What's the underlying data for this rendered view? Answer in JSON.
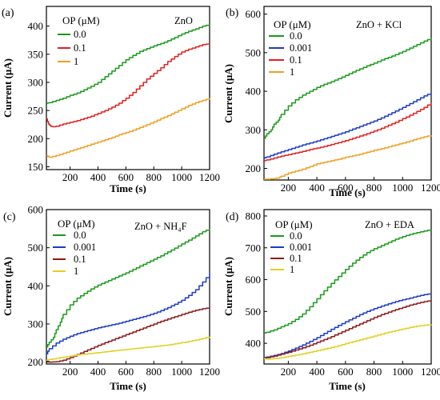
{
  "chart_data": [
    {
      "panel": "(a)",
      "type": "line",
      "annotation": "ZnO",
      "xlabel": "Time (s)",
      "ylabel": "Current (μA)",
      "xlim": [
        30,
        1200
      ],
      "ylim": [
        145,
        435
      ],
      "xticks": [
        200,
        400,
        600,
        800,
        1000,
        1200
      ],
      "yticks": [
        150,
        200,
        250,
        300,
        350,
        400
      ],
      "grid": false,
      "legend": {
        "title": "OP (μM)",
        "placement": "top-left"
      },
      "series": [
        {
          "name": "0.0",
          "color": "#1a9a1a",
          "x": [
            30,
            50,
            100,
            150,
            200,
            250,
            300,
            350,
            400,
            450,
            500,
            550,
            600,
            650,
            700,
            750,
            800,
            850,
            900,
            950,
            1000,
            1050,
            1100,
            1150,
            1200
          ],
          "y": [
            263,
            264,
            268,
            272,
            277,
            281,
            287,
            293,
            300,
            310,
            320,
            330,
            340,
            348,
            355,
            360,
            365,
            369,
            374,
            380,
            386,
            391,
            395,
            400,
            403
          ]
        },
        {
          "name": "0.1",
          "color": "#e02020",
          "x": [
            30,
            45,
            60,
            80,
            100,
            150,
            200,
            250,
            300,
            350,
            400,
            450,
            500,
            550,
            600,
            650,
            700,
            750,
            800,
            850,
            900,
            950,
            1000,
            1050,
            1100,
            1150,
            1200
          ],
          "y": [
            235,
            226,
            222,
            221,
            222,
            226,
            229,
            232,
            236,
            240,
            245,
            250,
            256,
            263,
            272,
            282,
            294,
            306,
            316,
            326,
            337,
            346,
            354,
            359,
            363,
            367,
            369
          ]
        },
        {
          "name": "1",
          "color": "#f0a020",
          "x": [
            30,
            50,
            100,
            150,
            200,
            250,
            300,
            350,
            400,
            450,
            500,
            550,
            600,
            650,
            700,
            750,
            800,
            850,
            900,
            950,
            1000,
            1050,
            1100,
            1150,
            1200
          ],
          "y": [
            170,
            167,
            170,
            174,
            178,
            182,
            186,
            190,
            194,
            198,
            202,
            207,
            211,
            215,
            220,
            225,
            230,
            236,
            241,
            247,
            253,
            259,
            264,
            268,
            272
          ]
        }
      ]
    },
    {
      "panel": "(b)",
      "type": "line",
      "annotation": "ZnO + KCl",
      "xlabel": "Time (s)",
      "ylabel": "Current (μA)",
      "xlim": [
        30,
        1200
      ],
      "ylim": [
        170,
        620
      ],
      "xticks": [
        200,
        400,
        600,
        800,
        1000,
        1200
      ],
      "yticks": [
        200,
        300,
        400,
        500,
        600
      ],
      "grid": false,
      "legend": {
        "title": "OP (μM)",
        "placement": "top-left"
      },
      "series": [
        {
          "name": "0.0",
          "color": "#1a9a1a",
          "x": [
            30,
            50,
            80,
            100,
            130,
            150,
            200,
            250,
            300,
            350,
            400,
            450,
            500,
            550,
            600,
            650,
            700,
            750,
            800,
            850,
            900,
            950,
            1000,
            1050,
            1100,
            1150,
            1200
          ],
          "y": [
            278,
            290,
            300,
            315,
            325,
            340,
            362,
            378,
            390,
            400,
            410,
            418,
            425,
            433,
            441,
            450,
            458,
            466,
            473,
            481,
            488,
            495,
            503,
            512,
            521,
            530,
            538
          ]
        },
        {
          "name": "0.001",
          "color": "#1c3cc8",
          "x": [
            30,
            50,
            100,
            150,
            200,
            250,
            300,
            350,
            400,
            450,
            500,
            550,
            600,
            650,
            700,
            750,
            800,
            850,
            900,
            950,
            1000,
            1050,
            1100,
            1150,
            1200
          ],
          "y": [
            227,
            230,
            237,
            243,
            249,
            255,
            261,
            266,
            271,
            277,
            283,
            289,
            295,
            302,
            309,
            316,
            323,
            331,
            340,
            349,
            358,
            368,
            378,
            388,
            396
          ]
        },
        {
          "name": "0.1",
          "color": "#e02020",
          "x": [
            30,
            50,
            100,
            150,
            200,
            250,
            300,
            350,
            400,
            450,
            500,
            550,
            600,
            650,
            700,
            750,
            800,
            850,
            900,
            950,
            1000,
            1050,
            1100,
            1150,
            1200
          ],
          "y": [
            220,
            222,
            227,
            232,
            236,
            240,
            244,
            249,
            253,
            257,
            262,
            267,
            272,
            278,
            284,
            290,
            297,
            304,
            312,
            320,
            329,
            338,
            348,
            358,
            371
          ]
        },
        {
          "name": "1",
          "color": "#f0a020",
          "x": [
            30,
            50,
            100,
            130,
            150,
            200,
            250,
            300,
            350,
            400,
            450,
            500,
            550,
            600,
            650,
            700,
            750,
            800,
            850,
            900,
            950,
            1000,
            1050,
            1100,
            1150,
            1200
          ],
          "y": [
            172,
            172,
            174,
            175,
            180,
            188,
            193,
            198,
            205,
            212,
            216,
            220,
            224,
            229,
            233,
            237,
            242,
            247,
            251,
            256,
            261,
            266,
            271,
            277,
            282,
            286
          ]
        }
      ]
    },
    {
      "panel": "(c)",
      "type": "line",
      "annotation": "ZnO + NH₄F",
      "xlabel": "Time (s)",
      "ylabel": "Current (μA)",
      "xlim": [
        30,
        1200
      ],
      "ylim": [
        195,
        600
      ],
      "xticks": [
        200,
        400,
        600,
        800,
        1000,
        1200
      ],
      "yticks": [
        200,
        300,
        400,
        500,
        600
      ],
      "grid": false,
      "legend": {
        "title": "OP (μM)",
        "placement": "top-left"
      },
      "series": [
        {
          "name": "0.0",
          "color": "#1a9a1a",
          "x": [
            30,
            50,
            80,
            100,
            130,
            150,
            200,
            250,
            300,
            350,
            400,
            450,
            500,
            550,
            600,
            650,
            700,
            750,
            800,
            850,
            900,
            950,
            1000,
            1050,
            1100,
            1150,
            1200
          ],
          "y": [
            240,
            252,
            265,
            285,
            305,
            325,
            350,
            368,
            380,
            392,
            402,
            410,
            418,
            426,
            434,
            443,
            452,
            461,
            470,
            479,
            489,
            499,
            510,
            520,
            531,
            542,
            550
          ]
        },
        {
          "name": "0.001",
          "color": "#1c3cc8",
          "x": [
            30,
            50,
            100,
            150,
            200,
            250,
            300,
            350,
            400,
            450,
            500,
            550,
            600,
            650,
            700,
            750,
            800,
            850,
            900,
            950,
            1000,
            1050,
            1100,
            1150,
            1200
          ],
          "y": [
            222,
            235,
            250,
            260,
            268,
            275,
            280,
            285,
            290,
            294,
            298,
            302,
            307,
            312,
            317,
            322,
            328,
            335,
            343,
            352,
            362,
            375,
            390,
            410,
            433
          ]
        },
        {
          "name": "0.1",
          "color": "#8b1a1a",
          "x": [
            30,
            50,
            100,
            150,
            200,
            250,
            300,
            350,
            400,
            450,
            500,
            550,
            600,
            650,
            700,
            750,
            800,
            850,
            900,
            950,
            1000,
            1050,
            1100,
            1150,
            1200
          ],
          "y": [
            203,
            200,
            201,
            205,
            212,
            220,
            228,
            236,
            244,
            251,
            258,
            265,
            272,
            279,
            286,
            293,
            300,
            307,
            313,
            319,
            325,
            331,
            336,
            340,
            343
          ]
        },
        {
          "name": "1",
          "color": "#e0d020",
          "x": [
            30,
            50,
            100,
            150,
            200,
            250,
            300,
            350,
            400,
            450,
            500,
            550,
            600,
            650,
            700,
            750,
            800,
            850,
            900,
            950,
            1000,
            1050,
            1100,
            1150,
            1200
          ],
          "y": [
            205,
            207,
            210,
            213,
            216,
            219,
            221,
            223,
            225,
            227,
            229,
            231,
            233,
            235,
            237,
            239,
            241,
            243,
            245,
            248,
            251,
            254,
            258,
            262,
            267
          ]
        }
      ]
    },
    {
      "panel": "(d)",
      "type": "line",
      "annotation": "ZnO + EDA",
      "xlabel": "Time (s)",
      "ylabel": "Current (μA)",
      "xlim": [
        30,
        1200
      ],
      "ylim": [
        335,
        820
      ],
      "xticks": [
        200,
        400,
        600,
        800,
        1000,
        1200
      ],
      "yticks": [
        400,
        500,
        600,
        700,
        800
      ],
      "grid": false,
      "legend": {
        "title": "OP (μM)",
        "placement": "top-left"
      },
      "series": [
        {
          "name": "0.0",
          "color": "#1a9a1a",
          "x": [
            30,
            50,
            100,
            150,
            200,
            250,
            300,
            350,
            400,
            450,
            500,
            550,
            600,
            650,
            700,
            750,
            800,
            850,
            900,
            950,
            1000,
            1050,
            1100,
            1150,
            1200
          ],
          "y": [
            432,
            435,
            442,
            452,
            462,
            475,
            492,
            515,
            540,
            565,
            588,
            610,
            632,
            652,
            670,
            685,
            697,
            707,
            717,
            727,
            735,
            742,
            748,
            753,
            757
          ]
        },
        {
          "name": "0.001",
          "color": "#1c3cc8",
          "x": [
            30,
            50,
            100,
            150,
            200,
            250,
            300,
            350,
            400,
            450,
            500,
            550,
            600,
            650,
            700,
            750,
            800,
            850,
            900,
            950,
            1000,
            1050,
            1100,
            1150,
            1200
          ],
          "y": [
            355,
            357,
            362,
            368,
            376,
            385,
            395,
            406,
            418,
            431,
            444,
            456,
            468,
            479,
            490,
            500,
            509,
            517,
            524,
            531,
            537,
            542,
            548,
            553,
            557
          ]
        },
        {
          "name": "0.1",
          "color": "#8b1a1a",
          "x": [
            30,
            50,
            100,
            150,
            200,
            250,
            300,
            350,
            400,
            450,
            500,
            550,
            600,
            650,
            700,
            750,
            800,
            850,
            900,
            950,
            1000,
            1050,
            1100,
            1150,
            1200
          ],
          "y": [
            353,
            355,
            360,
            366,
            372,
            379,
            386,
            394,
            403,
            412,
            421,
            431,
            441,
            451,
            461,
            471,
            481,
            490,
            498,
            506,
            513,
            520,
            526,
            531,
            535
          ]
        },
        {
          "name": "1",
          "color": "#e0d020",
          "x": [
            30,
            50,
            100,
            150,
            200,
            250,
            300,
            350,
            400,
            450,
            500,
            550,
            600,
            650,
            700,
            750,
            800,
            850,
            900,
            950,
            1000,
            1050,
            1100,
            1150,
            1200
          ],
          "y": [
            352,
            350,
            352,
            355,
            359,
            363,
            367,
            372,
            377,
            382,
            387,
            393,
            399,
            405,
            411,
            417,
            423,
            429,
            435,
            440,
            445,
            450,
            454,
            457,
            459
          ]
        }
      ]
    }
  ]
}
